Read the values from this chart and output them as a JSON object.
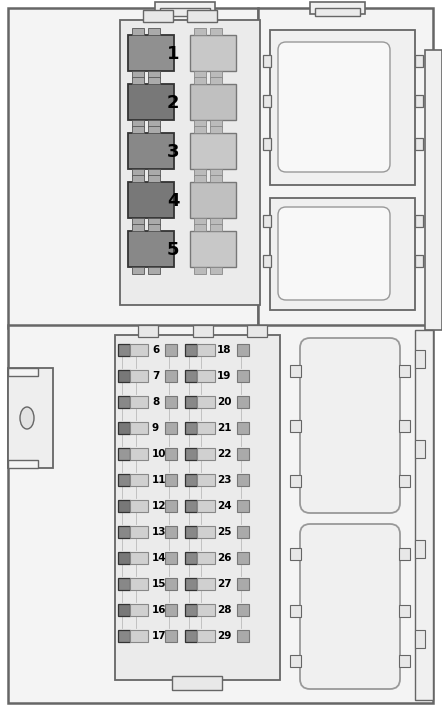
{
  "bg": "#ffffff",
  "oc": "#666666",
  "oc2": "#999999",
  "top_relay_left_colors": [
    "#909090",
    "#787878",
    "#888888",
    "#787878",
    "#888888"
  ],
  "top_relay_right_colors": [
    "#c8c8c8",
    "#c0c0c0",
    "#c8c8c8",
    "#c0c0c0",
    "#c8c8c8"
  ],
  "fuse_left_dark": [
    "#888888",
    "#787878",
    "#888888",
    "#787878",
    "#989898",
    "#888888",
    "#787878",
    "#888888",
    "#787878",
    "#888888",
    "#787878",
    "#888888"
  ],
  "fuse_right_dark": [
    "#888888",
    "#888888",
    "#888888",
    "#888888",
    "#888888",
    "#888888",
    "#888888",
    "#888888",
    "#888888",
    "#888888",
    "#888888",
    "#888888"
  ]
}
